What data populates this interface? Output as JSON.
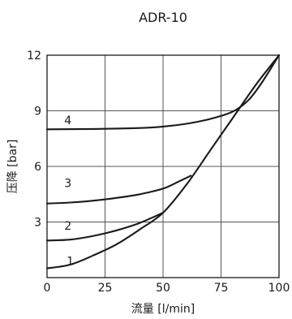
{
  "chart_data": {
    "type": "line",
    "title": "ADR-10",
    "xlabel": "流量 [l/min]",
    "ylabel": "压降 [bar]",
    "xlim": [
      0,
      100
    ],
    "ylim": [
      0,
      12
    ],
    "x_ticks": [
      0,
      25,
      50,
      75,
      100
    ],
    "y_ticks": [
      3,
      6,
      9,
      12
    ],
    "grid": true,
    "legend": "none",
    "series": [
      {
        "name": "1",
        "label_at": [
          10,
          0.9
        ],
        "points": [
          [
            0,
            0.5
          ],
          [
            10,
            0.7
          ],
          [
            20,
            1.2
          ],
          [
            30,
            1.8
          ],
          [
            40,
            2.6
          ],
          [
            50,
            3.5
          ],
          [
            60,
            5.0
          ],
          [
            70,
            6.8
          ],
          [
            80,
            8.6
          ],
          [
            90,
            10.4
          ],
          [
            100,
            12.0
          ]
        ]
      },
      {
        "name": "2",
        "label_at": [
          9,
          2.8
        ],
        "points": [
          [
            0,
            2.0
          ],
          [
            10,
            2.05
          ],
          [
            20,
            2.25
          ],
          [
            30,
            2.55
          ],
          [
            40,
            2.95
          ],
          [
            50,
            3.5
          ]
        ]
      },
      {
        "name": "3",
        "label_at": [
          9,
          5.1
        ],
        "points": [
          [
            0,
            4.0
          ],
          [
            10,
            4.05
          ],
          [
            20,
            4.15
          ],
          [
            30,
            4.3
          ],
          [
            40,
            4.5
          ],
          [
            50,
            4.8
          ],
          [
            57,
            5.2
          ],
          [
            62,
            5.5
          ]
        ]
      },
      {
        "name": "4",
        "label_at": [
          9,
          8.5
        ],
        "points": [
          [
            0,
            8.0
          ],
          [
            20,
            8.02
          ],
          [
            40,
            8.07
          ],
          [
            50,
            8.15
          ],
          [
            60,
            8.3
          ],
          [
            70,
            8.55
          ],
          [
            80,
            8.95
          ],
          [
            87,
            9.6
          ],
          [
            93,
            10.6
          ],
          [
            100,
            12.0
          ]
        ]
      }
    ]
  }
}
